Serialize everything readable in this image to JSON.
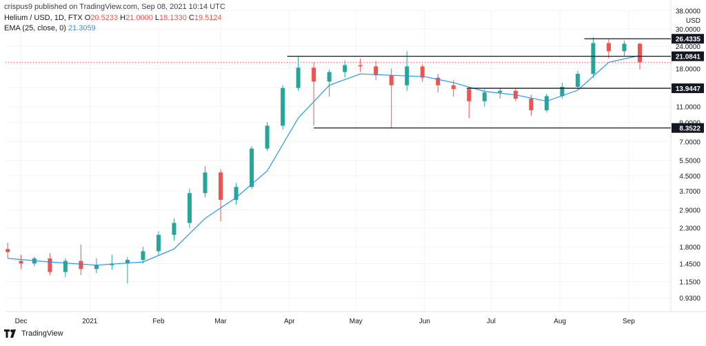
{
  "header": {
    "published": "crispus9 published on TradingView.com, Sep 08, 2021 10:14 UTC",
    "symbol": "Helium / USD, 1D, FTX",
    "ohlc": {
      "o_label": "O",
      "o": "20.5233",
      "h_label": "H",
      "h": "21.0000",
      "l_label": "L",
      "l": "18.1330",
      "c_label": "C",
      "c": "19.5124"
    },
    "ema_label": "EMA (25, close, 0)",
    "ema_value": "21.3059"
  },
  "footer": {
    "brand": "TradingView"
  },
  "colors": {
    "up": "#26a69a",
    "down": "#ef5350",
    "ema": "#2196f3",
    "level": "#131722",
    "grid": "#f0f3fa",
    "price_line": "#ef5350"
  },
  "chart_data": {
    "type": "candlestick",
    "scale": "log",
    "currency": "USD",
    "y_ticks": [
      0.93,
      1.15,
      1.45,
      1.8,
      2.3,
      2.9,
      3.7,
      4.5,
      5.5,
      7.0,
      9.0,
      11.0,
      14.0,
      18.0,
      24.0,
      30.0,
      38.0
    ],
    "y_tick_labels": [
      "0.9300",
      "1.1500",
      "1.4500",
      "1.8000",
      "2.3000",
      "2.9000",
      "3.7000",
      "4.5000",
      "5.5000",
      "7.0000",
      "9.0000",
      "11.0000",
      "14.0000",
      "18.0000",
      "24.0000",
      "30.0000",
      "38.0000"
    ],
    "y_range": [
      0.78,
      38.5
    ],
    "x_range": [
      "2020-11-24",
      "2021-09-20"
    ],
    "x_ticks": [
      {
        "date": "2020-12-01",
        "label": "Dec"
      },
      {
        "date": "2021-01-01",
        "label": "2021"
      },
      {
        "date": "2021-02-01",
        "label": "Feb"
      },
      {
        "date": "2021-03-01",
        "label": "Mar"
      },
      {
        "date": "2021-04-01",
        "label": "Apr"
      },
      {
        "date": "2021-05-01",
        "label": "May"
      },
      {
        "date": "2021-06-01",
        "label": "Jun"
      },
      {
        "date": "2021-07-01",
        "label": "Jul"
      },
      {
        "date": "2021-08-01",
        "label": "Aug"
      },
      {
        "date": "2021-09-01",
        "label": "Sep"
      }
    ],
    "levels": [
      {
        "value": 26.4335,
        "label": "26.4335",
        "from": "2021-08-12",
        "to": "2021-09-20"
      },
      {
        "value": 21.0841,
        "label": "21.0841",
        "from": "2021-03-31",
        "to": "2021-09-20"
      },
      {
        "value": 13.9447,
        "label": "13.9447",
        "from": "2021-06-20",
        "to": "2021-09-20"
      },
      {
        "value": 8.3522,
        "label": "8.3522",
        "from": "2021-04-12",
        "to": "2021-09-20"
      }
    ],
    "current_price": 19.5124,
    "series": [
      {
        "name": "Helium / USD",
        "kind": "candles",
        "data": [
          {
            "d": "2020-11-25",
            "o": 1.75,
            "h": 1.9,
            "l": 1.55,
            "c": 1.68
          },
          {
            "d": "2020-12-01",
            "o": 1.5,
            "h": 1.62,
            "l": 1.35,
            "c": 1.45
          },
          {
            "d": "2020-12-07",
            "o": 1.45,
            "h": 1.58,
            "l": 1.4,
            "c": 1.55
          },
          {
            "d": "2020-12-14",
            "o": 1.55,
            "h": 1.66,
            "l": 1.25,
            "c": 1.3
          },
          {
            "d": "2020-12-21",
            "o": 1.3,
            "h": 1.55,
            "l": 1.22,
            "c": 1.5
          },
          {
            "d": "2020-12-28",
            "o": 1.5,
            "h": 1.85,
            "l": 1.25,
            "c": 1.35
          },
          {
            "d": "2021-01-04",
            "o": 1.35,
            "h": 1.55,
            "l": 1.28,
            "c": 1.42
          },
          {
            "d": "2021-01-11",
            "o": 1.42,
            "h": 1.62,
            "l": 1.34,
            "c": 1.45
          },
          {
            "d": "2021-01-18",
            "o": 1.45,
            "h": 1.58,
            "l": 1.12,
            "c": 1.52
          },
          {
            "d": "2021-01-25",
            "o": 1.52,
            "h": 1.8,
            "l": 1.45,
            "c": 1.7
          },
          {
            "d": "2021-02-01",
            "o": 1.7,
            "h": 2.2,
            "l": 1.62,
            "c": 2.1
          },
          {
            "d": "2021-02-08",
            "o": 2.1,
            "h": 2.6,
            "l": 1.95,
            "c": 2.45
          },
          {
            "d": "2021-02-15",
            "o": 2.45,
            "h": 3.8,
            "l": 2.3,
            "c": 3.6
          },
          {
            "d": "2021-02-22",
            "o": 3.6,
            "h": 5.1,
            "l": 3.4,
            "c": 4.7
          },
          {
            "d": "2021-03-01",
            "o": 4.7,
            "h": 4.9,
            "l": 2.5,
            "c": 3.3
          },
          {
            "d": "2021-03-08",
            "o": 3.3,
            "h": 4.1,
            "l": 3.1,
            "c": 3.9
          },
          {
            "d": "2021-03-15",
            "o": 3.9,
            "h": 6.6,
            "l": 3.8,
            "c": 6.4
          },
          {
            "d": "2021-03-22",
            "o": 6.4,
            "h": 9.0,
            "l": 6.2,
            "c": 8.6
          },
          {
            "d": "2021-03-29",
            "o": 8.6,
            "h": 14.5,
            "l": 8.2,
            "c": 14.0
          },
          {
            "d": "2021-04-05",
            "o": 14.0,
            "h": 21.0,
            "l": 13.5,
            "c": 18.2
          },
          {
            "d": "2021-04-12",
            "o": 18.2,
            "h": 19.5,
            "l": 8.6,
            "c": 15.2
          },
          {
            "d": "2021-04-19",
            "o": 15.2,
            "h": 17.8,
            "l": 12.5,
            "c": 17.2
          },
          {
            "d": "2021-04-26",
            "o": 17.2,
            "h": 20.0,
            "l": 16.0,
            "c": 18.8
          },
          {
            "d": "2021-05-03",
            "o": 18.8,
            "h": 20.5,
            "l": 17.2,
            "c": 18.5
          },
          {
            "d": "2021-05-10",
            "o": 18.5,
            "h": 19.8,
            "l": 15.5,
            "c": 16.5
          },
          {
            "d": "2021-05-17",
            "o": 16.5,
            "h": 18.0,
            "l": 8.35,
            "c": 14.5
          },
          {
            "d": "2021-05-24",
            "o": 14.5,
            "h": 22.5,
            "l": 13.5,
            "c": 18.5
          },
          {
            "d": "2021-05-31",
            "o": 18.5,
            "h": 19.0,
            "l": 15.2,
            "c": 16.0
          },
          {
            "d": "2021-06-07",
            "o": 16.0,
            "h": 16.8,
            "l": 13.2,
            "c": 14.5
          },
          {
            "d": "2021-06-14",
            "o": 14.5,
            "h": 15.5,
            "l": 12.5,
            "c": 13.8
          },
          {
            "d": "2021-06-21",
            "o": 13.8,
            "h": 14.2,
            "l": 9.5,
            "c": 11.8
          },
          {
            "d": "2021-06-28",
            "o": 11.8,
            "h": 13.8,
            "l": 11.0,
            "c": 13.2
          },
          {
            "d": "2021-07-05",
            "o": 13.2,
            "h": 14.0,
            "l": 12.2,
            "c": 13.5
          },
          {
            "d": "2021-07-12",
            "o": 13.5,
            "h": 13.9,
            "l": 11.8,
            "c": 12.2
          },
          {
            "d": "2021-07-19",
            "o": 12.2,
            "h": 12.8,
            "l": 9.8,
            "c": 10.5
          },
          {
            "d": "2021-07-26",
            "o": 10.5,
            "h": 13.0,
            "l": 10.2,
            "c": 12.6
          },
          {
            "d": "2021-08-02",
            "o": 12.6,
            "h": 15.0,
            "l": 12.2,
            "c": 14.2
          },
          {
            "d": "2021-08-09",
            "o": 14.2,
            "h": 17.5,
            "l": 13.8,
            "c": 16.8
          },
          {
            "d": "2021-08-16",
            "o": 16.8,
            "h": 27.0,
            "l": 16.0,
            "c": 25.0
          },
          {
            "d": "2021-08-23",
            "o": 25.0,
            "h": 26.4,
            "l": 20.5,
            "c": 22.5
          },
          {
            "d": "2021-08-30",
            "o": 22.5,
            "h": 25.8,
            "l": 21.2,
            "c": 24.8
          },
          {
            "d": "2021-09-06",
            "o": 24.8,
            "h": 25.2,
            "l": 17.8,
            "c": 19.51
          }
        ]
      },
      {
        "name": "EMA (25, close, 0)",
        "kind": "line",
        "data": [
          {
            "d": "2020-11-25",
            "v": 1.55
          },
          {
            "d": "2020-12-14",
            "v": 1.48
          },
          {
            "d": "2021-01-04",
            "v": 1.42
          },
          {
            "d": "2021-01-25",
            "v": 1.48
          },
          {
            "d": "2021-02-08",
            "v": 1.75
          },
          {
            "d": "2021-02-22",
            "v": 2.6
          },
          {
            "d": "2021-03-08",
            "v": 3.4
          },
          {
            "d": "2021-03-22",
            "v": 4.8
          },
          {
            "d": "2021-04-05",
            "v": 9.5
          },
          {
            "d": "2021-04-19",
            "v": 14.5
          },
          {
            "d": "2021-05-03",
            "v": 16.8
          },
          {
            "d": "2021-05-17",
            "v": 16.5
          },
          {
            "d": "2021-06-01",
            "v": 16.2
          },
          {
            "d": "2021-06-14",
            "v": 15.0
          },
          {
            "d": "2021-06-28",
            "v": 13.4
          },
          {
            "d": "2021-07-12",
            "v": 12.8
          },
          {
            "d": "2021-07-26",
            "v": 11.8
          },
          {
            "d": "2021-08-09",
            "v": 13.6
          },
          {
            "d": "2021-08-23",
            "v": 19.5
          },
          {
            "d": "2021-09-06",
            "v": 21.31
          }
        ]
      }
    ]
  }
}
